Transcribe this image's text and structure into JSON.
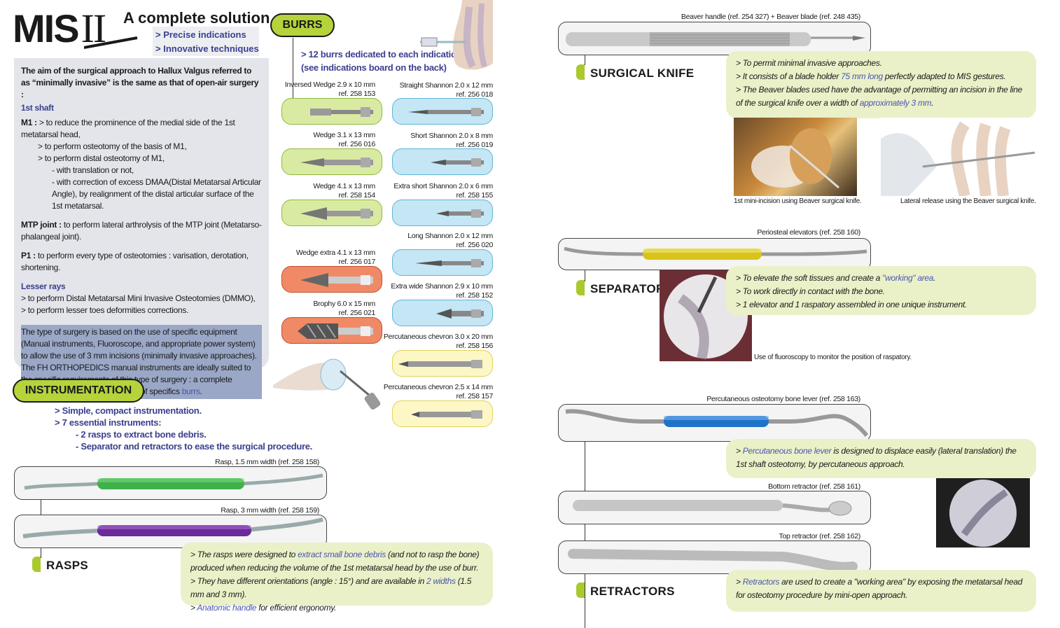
{
  "header": {
    "brand": "MIS",
    "roman": "II",
    "headline": "A complete solution",
    "taglines": [
      "> Precise indications",
      "> Innovative techniques"
    ]
  },
  "intro": {
    "lead": "The aim of the surgical approach to Hallux Valgus referred to as “minimally invasive” is the same as that of open-air surgery :",
    "shaft": "1st shaft",
    "m1_label": "M1 :",
    "m1": [
      "> to reduce the prominence of the medial side of the 1st metatarsal head,",
      "> to perform osteotomy of the basis of M1,",
      "> to perform distal osteotomy of M1,",
      "- with translation or not,",
      "- with correction of excess DMAA(Distal Metatarsal Articular Angle), by realignment of the distal articular surface of the 1st metatarsal."
    ],
    "mtp_label": "MTP joint :",
    "mtp": "to perform lateral arthrolysis of the MTP joint (Metatarso-phalangeal joint).",
    "p1_label": "P1 :",
    "p1": "to perform every type of osteotomies : varisation, derotation, shortening.",
    "lesser_title": "Lesser rays",
    "lesser": [
      "> to perform Distal Metatarsal Mini Invasive Osteotomies (DMMO),",
      "> to perform lesser toes deformities corrections."
    ],
    "highlight_a": "The type of surgery is based on the use of specific equipment (Manual instruments, Fluoroscope, and appropriate power system) to allow the use of 3 mm incisions (minimally invasive approaches). The FH ORTHOPEDICS manual instruments are ideally suited to the specific requirements of this type of surgery : a complete ",
    "highlight_link1": "instrumentation",
    "highlight_b": " and a wide range of specifics ",
    "highlight_link2": "burrs",
    "highlight_c": "."
  },
  "burrs": {
    "title": "BURRS",
    "intro": [
      "> 12 burrs dedicated to each indications",
      "(see indications board on the back)"
    ],
    "left": [
      {
        "name": "Inversed Wedge 2.9 x 10 mm",
        "ref": "ref. 258 153",
        "color": "#d9eba3"
      },
      {
        "name": "Wedge 3.1 x 13 mm",
        "ref": "ref. 256 016",
        "color": "#d9eba3"
      },
      {
        "name": "Wedge 4.1 x 13 mm",
        "ref": "ref. 258 154",
        "color": "#d9eba3"
      },
      {
        "name": "Wedge extra 4.1 x 13 mm",
        "ref": "ref. 256 017",
        "color": "#f08a66"
      },
      {
        "name": "Brophy 6.0 x 15 mm",
        "ref": "ref. 256 021",
        "color": "#f08a66"
      }
    ],
    "right": [
      {
        "name": "Straight Shannon 2.0 x 12 mm",
        "ref": "ref. 256 018",
        "color": "#c4e6f5"
      },
      {
        "name": "Short Shannon 2.0 x 8 mm",
        "ref": "ref. 256 019",
        "color": "#c4e6f5"
      },
      {
        "name": "Extra short Shannon 2.0 x 6 mm",
        "ref": "ref. 258 155",
        "color": "#c4e6f5"
      },
      {
        "name": "Long Shannon 2.0 x 12 mm",
        "ref": "ref. 256 020",
        "color": "#c4e6f5"
      },
      {
        "name": "Extra wide Shannon 2.9 x 10 mm",
        "ref": "ref. 258 152",
        "color": "#c4e6f5"
      },
      {
        "name": "Percutaneous chevron 3.0 x 20 mm",
        "ref": "ref. 258 156",
        "color": "#fcf7c4"
      },
      {
        "name": "Percutaneous chevron 2.5 x 14 mm",
        "ref": "ref. 258 157",
        "color": "#fcf7c4"
      }
    ]
  },
  "instrumentation": {
    "title": "INSTRUMENTATION",
    "points": [
      "> Simple, compact instrumentation.",
      "> 7 essential instruments:",
      "- 2 rasps to extract bone debris.",
      "- Separator and retractors to ease the surgical procedure."
    ]
  },
  "rasps": {
    "title": "RASPS",
    "rasp1": "Rasp, 1.5 mm width (ref. 258 158)",
    "rasp2": "Rasp, 3 mm width (ref. 258 159)",
    "rasp1_color": "#3eb14a",
    "rasp2_color": "#6a2a9a",
    "d1a": "> The rasps were designed to ",
    "d1b": "extract small bone debris",
    "d1c": " (and not to rasp the bone) produced when reducing the volume of the 1st metatarsal head by the use of burr.",
    "d2a": "> They have different orientations (angle : 15°) and are available in ",
    "d2b": "2 widths",
    "d2c": " (1.5 mm and 3 mm).",
    "d3a": "> ",
    "d3b": "Anatomic handle",
    "d3c": " for efficient ergonomy."
  },
  "knife": {
    "label": "Beaver handle (ref. 254 327) + Beaver blade (ref. 248 435)",
    "title": "SURGICAL KNIFE",
    "d1": "> To permit minimal invasive approaches.",
    "d2a": "> It consists of a blade holder ",
    "d2b": "75 mm long",
    "d2c": " perfectly adapted to MIS gestures.",
    "d3a": "> The Beaver blades used have the advantage of permitting an incision in the line of the surgical knife over a width of ",
    "d3b": "approximately 3 mm",
    "d3c": ".",
    "cap1": "1st mini-incision using Beaver surgical knife.",
    "cap2": "Lateral release using the Beaver surgical knife."
  },
  "separator": {
    "label": "Periosteal elevators (ref. 258 160)",
    "title": "SEPARATOR",
    "handle_color": "#d7c31a",
    "d1a": "> To elevate the soft tissues and create a ",
    "d1b": "\"working\" area",
    "d1c": ".",
    "d2": "> To work directly in contact with the bone.",
    "d3": "> 1 elevator and 1 raspatory assembled in one unique instrument.",
    "caption": "Use of fluoroscopy to monitor the position of raspatory."
  },
  "retractors": {
    "lever_label": "Percutaneous osteotomy bone lever (ref. 258 163)",
    "lever_color": "#1f72c9",
    "lever_a": "> ",
    "lever_b": "Percutaneous bone lever",
    "lever_c": " is designed to displace easily (lateral translation) the 1st shaft osteotomy, by percutaneous approach.",
    "bottom_label": "Bottom retractor (ref. 258 161)",
    "top_label": "Top retractor (ref. 258 162)",
    "title": "RETRACTORS",
    "d_a": "> ",
    "d_b": "Retractors",
    "d_c": " are used to create a \"working area\" by exposing the metatarsal head for osteotomy procedure by mini-open approach."
  }
}
